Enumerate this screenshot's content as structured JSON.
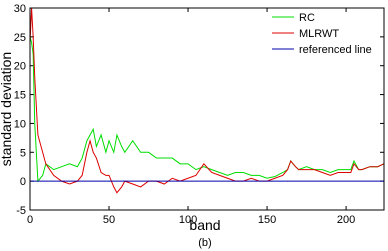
{
  "chart_data": {
    "type": "line",
    "xlabel": "band",
    "ylabel": "standard deviation",
    "caption": "(b)",
    "xlim": [
      0,
      224
    ],
    "xticks": [
      0,
      50,
      100,
      150,
      200
    ],
    "ylim": [
      -5,
      30
    ],
    "yticks": [
      -5,
      0,
      5,
      10,
      15,
      20,
      25,
      30
    ],
    "legend": "upper right",
    "x": [
      0,
      1,
      2,
      3,
      5,
      8,
      10,
      15,
      20,
      25,
      30,
      33,
      36,
      38,
      40,
      42,
      45,
      48,
      50,
      53,
      55,
      58,
      60,
      65,
      70,
      75,
      80,
      85,
      90,
      95,
      100,
      105,
      110,
      115,
      120,
      125,
      130,
      135,
      140,
      145,
      150,
      155,
      160,
      163,
      165,
      168,
      170,
      175,
      180,
      185,
      190,
      195,
      200,
      203,
      205,
      208,
      210,
      215,
      220,
      224
    ],
    "series": [
      {
        "name": "RC",
        "color": "#00dd00",
        "values": [
          25,
          24,
          22,
          10,
          0,
          1,
          3,
          2,
          2.5,
          3,
          2.5,
          4,
          7,
          8,
          9,
          6,
          8,
          5,
          7,
          5,
          8,
          6,
          5,
          7,
          5,
          5,
          4,
          4,
          4,
          3,
          3,
          2,
          2.5,
          2,
          1.5,
          1,
          1.5,
          1.5,
          1,
          1,
          0.5,
          0.8,
          1.5,
          2,
          3.5,
          2.5,
          2,
          2.5,
          2,
          2,
          1.5,
          2,
          2,
          2,
          3.5,
          2,
          2,
          2.5,
          2.5,
          3
        ]
      },
      {
        "name": "MLRWT",
        "color": "#dd0000",
        "values": [
          24,
          30,
          25,
          18,
          8,
          5,
          3,
          1,
          0,
          -0.5,
          0,
          1,
          5,
          7,
          5,
          4,
          1.5,
          1,
          1,
          -1,
          -2,
          -1,
          0,
          -0.5,
          -1,
          0,
          0,
          -0.5,
          0.5,
          0,
          0.5,
          1,
          3,
          1.5,
          1,
          0.5,
          0,
          0,
          0.5,
          0,
          0,
          0.5,
          1,
          2,
          3.5,
          2.5,
          2,
          2,
          2,
          1.5,
          1,
          1.5,
          1.5,
          1.5,
          3,
          2,
          2,
          2.5,
          2.5,
          3
        ]
      },
      {
        "name": "referenced line",
        "color": "#0000aa",
        "x": [
          0,
          224
        ],
        "values": [
          0,
          0
        ]
      }
    ]
  }
}
